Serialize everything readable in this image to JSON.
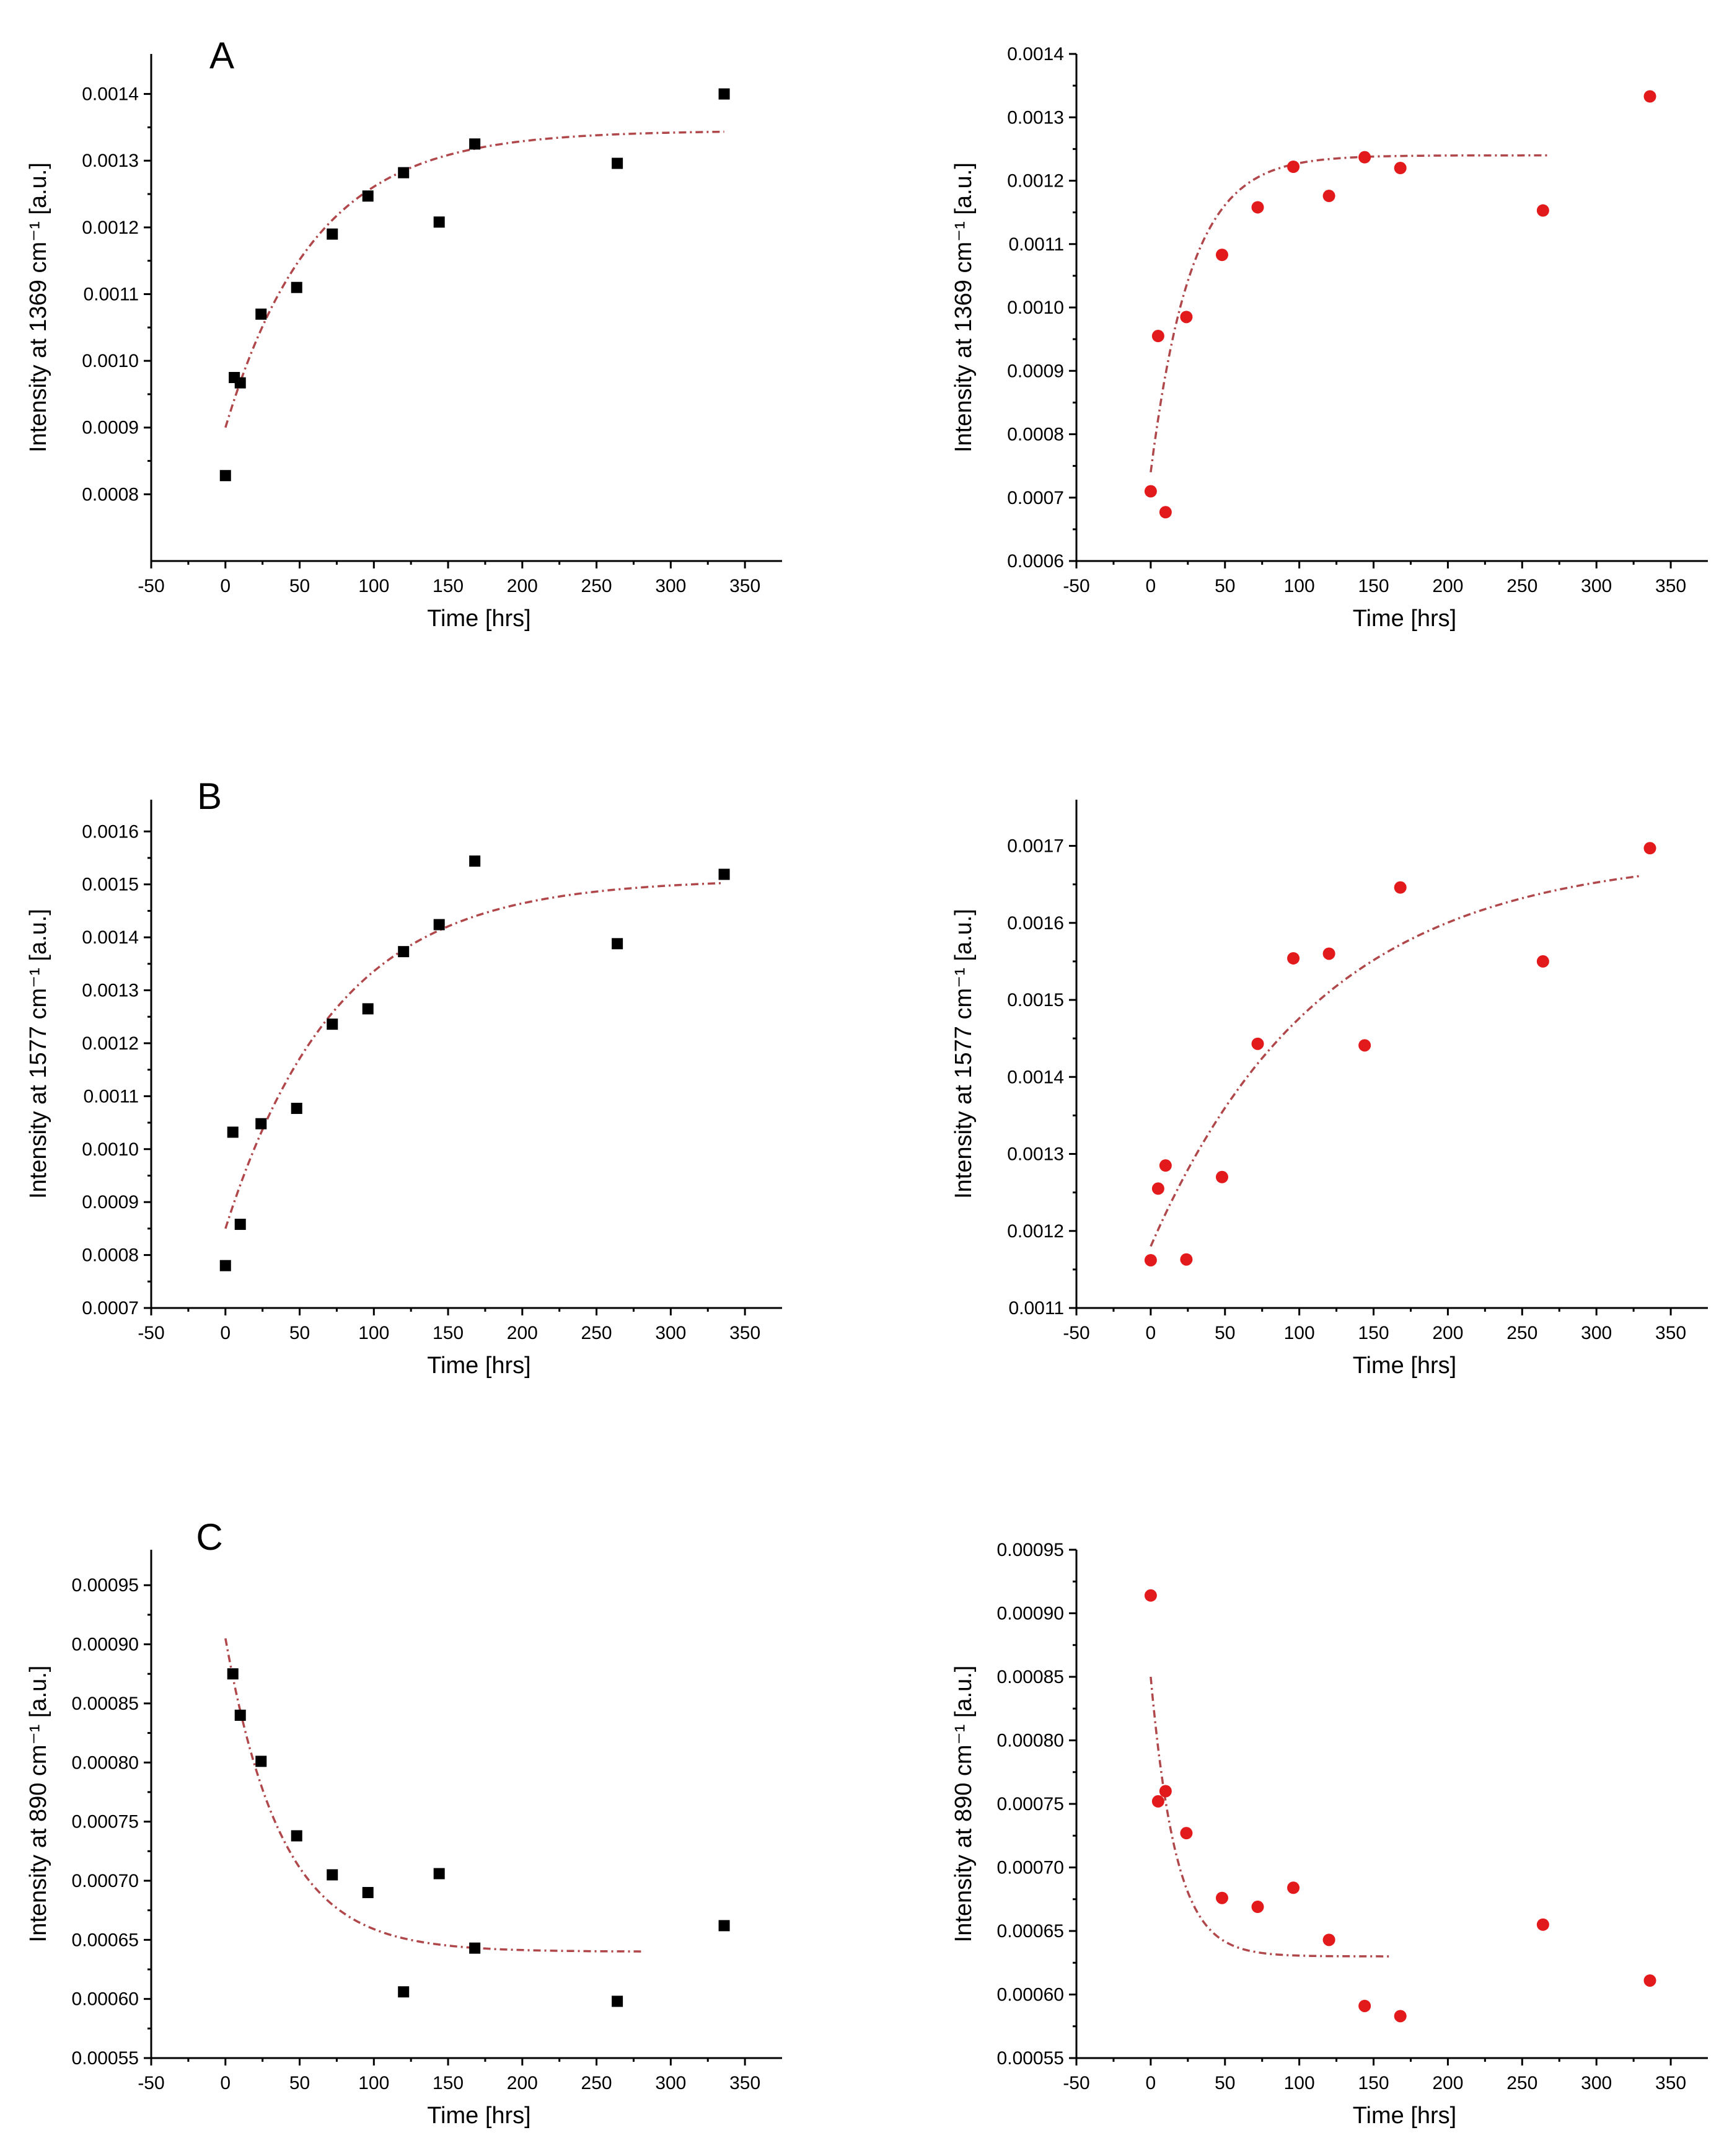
{
  "figure": {
    "panel_letters": [
      "A",
      "B",
      "C"
    ]
  },
  "chart_data": [
    {
      "type": "scatter",
      "panel": "A",
      "title": "",
      "xlabel": "Time [hrs]",
      "ylabel": "Intensity at 1369 cm⁻¹ [a.u.]",
      "xlim": [
        -50,
        375
      ],
      "ylim": [
        0.0007,
        0.00146
      ],
      "xticks": [
        -50,
        0,
        50,
        100,
        150,
        200,
        250,
        300,
        350
      ],
      "yticks": [
        0.0008,
        0.0009,
        0.001,
        0.0011,
        0.0012,
        0.0013,
        0.0014
      ],
      "ytick_labels": [
        "0.0008",
        "0.0009",
        "0.0010",
        "0.0011",
        "0.0012",
        "0.0013",
        "0.0014"
      ],
      "marker": "square",
      "color": "#000000",
      "x": [
        0,
        6,
        10,
        24,
        48,
        72,
        96,
        120,
        144,
        168,
        264,
        336
      ],
      "y": [
        0.000828,
        0.000975,
        0.000967,
        0.00107,
        0.00111,
        0.00119,
        0.001247,
        0.001282,
        0.001208,
        0.001325,
        0.001296,
        0.0014
      ],
      "fit": {
        "model": "exponential",
        "color": "#b0474b",
        "x_range": [
          0,
          336
        ],
        "y_start": 0.0009,
        "y_plateau": 0.001345,
        "tau": 60
      }
    },
    {
      "type": "scatter",
      "panel": "",
      "title": "",
      "xlabel": "Time [hrs]",
      "ylabel": "Intensity at 1369 cm⁻¹ [a.u.]",
      "xlim": [
        -50,
        375
      ],
      "ylim": [
        0.0006,
        0.0014
      ],
      "xticks": [
        -50,
        0,
        50,
        100,
        150,
        200,
        250,
        300,
        350
      ],
      "yticks": [
        0.0006,
        0.0007,
        0.0008,
        0.0009,
        0.001,
        0.0011,
        0.0012,
        0.0013,
        0.0014
      ],
      "ytick_labels": [
        "0.0006",
        "0.0007",
        "0.0008",
        "0.0009",
        "0.0010",
        "0.0011",
        "0.0012",
        "0.0013",
        "0.0014"
      ],
      "marker": "circle",
      "color": "#e31a1c",
      "x": [
        0,
        5,
        10,
        24,
        48,
        72,
        96,
        120,
        144,
        168,
        264,
        336
      ],
      "y": [
        0.00071,
        0.000955,
        0.000677,
        0.000985,
        0.001083,
        0.001158,
        0.001222,
        0.001176,
        0.001237,
        0.00122,
        0.001153,
        0.001333
      ],
      "fit": {
        "model": "exponential",
        "color": "#b0474b",
        "x_range": [
          0,
          267
        ],
        "y_start": 0.00074,
        "y_plateau": 0.00124,
        "tau": 27
      }
    },
    {
      "type": "scatter",
      "panel": "B",
      "title": "",
      "xlabel": "Time [hrs]",
      "ylabel": "Intensity at 1577 cm⁻¹ [a.u.]",
      "xlim": [
        -50,
        375
      ],
      "ylim": [
        0.0007,
        0.00166
      ],
      "xticks": [
        -50,
        0,
        50,
        100,
        150,
        200,
        250,
        300,
        350
      ],
      "yticks": [
        0.0007,
        0.0008,
        0.0009,
        0.001,
        0.0011,
        0.0012,
        0.0013,
        0.0014,
        0.0015,
        0.0016
      ],
      "ytick_labels": [
        "0.0007",
        "0.0008",
        "0.0009",
        "0.0010",
        "0.0011",
        "0.0012",
        "0.0013",
        "0.0014",
        "0.0015",
        "0.0016"
      ],
      "marker": "square",
      "color": "#000000",
      "x": [
        0,
        5,
        10,
        24,
        48,
        72,
        96,
        120,
        144,
        168,
        264,
        336
      ],
      "y": [
        0.00078,
        0.001032,
        0.000858,
        0.001048,
        0.001077,
        0.001236,
        0.001265,
        0.001373,
        0.001424,
        0.001544,
        0.001388,
        0.001519
      ],
      "fit": {
        "model": "exponential",
        "color": "#b0474b",
        "x_range": [
          0,
          336
        ],
        "y_start": 0.00085,
        "y_plateau": 0.00151,
        "tau": 75
      }
    },
    {
      "type": "scatter",
      "panel": "",
      "title": "",
      "xlabel": "Time [hrs]",
      "ylabel": "Intensity at 1577 cm⁻¹ [a.u.]",
      "xlim": [
        -50,
        375
      ],
      "ylim": [
        0.0011,
        0.00176
      ],
      "xticks": [
        -50,
        0,
        50,
        100,
        150,
        200,
        250,
        300,
        350
      ],
      "yticks": [
        0.0011,
        0.0012,
        0.0013,
        0.0014,
        0.0015,
        0.0016,
        0.0017
      ],
      "ytick_labels": [
        "0.0011",
        "0.0012",
        "0.0013",
        "0.0014",
        "0.0015",
        "0.0016",
        "0.0017"
      ],
      "marker": "circle",
      "color": "#e31a1c",
      "x": [
        0,
        5,
        10,
        24,
        48,
        72,
        96,
        120,
        144,
        168,
        264,
        336
      ],
      "y": [
        0.001162,
        0.001255,
        0.001285,
        0.001163,
        0.00127,
        0.001443,
        0.001554,
        0.00156,
        0.001441,
        0.001646,
        0.00155,
        0.001697
      ],
      "fit": {
        "model": "exponential",
        "color": "#b0474b",
        "x_range": [
          0,
          331
        ],
        "y_start": 0.00118,
        "y_plateau": 0.00169,
        "tau": 115
      }
    },
    {
      "type": "scatter",
      "panel": "C",
      "title": "",
      "xlabel": "Time [hrs]",
      "ylabel": "Intensity at 890 cm⁻¹ [a.u.]",
      "xlim": [
        -50,
        375
      ],
      "ylim": [
        0.00055,
        0.00098
      ],
      "xticks": [
        -50,
        0,
        50,
        100,
        150,
        200,
        250,
        300,
        350
      ],
      "yticks": [
        0.00055,
        0.0006,
        0.00065,
        0.0007,
        0.00075,
        0.0008,
        0.00085,
        0.0009,
        0.00095
      ],
      "ytick_labels": [
        "0.00055",
        "0.00060",
        "0.00065",
        "0.00070",
        "0.00075",
        "0.00080",
        "0.00085",
        "0.00090",
        "0.00095"
      ],
      "marker": "square",
      "color": "#000000",
      "x": [
        5,
        10,
        24,
        48,
        72,
        96,
        120,
        144,
        168,
        264,
        336
      ],
      "y": [
        0.000875,
        0.00084,
        0.000801,
        0.000738,
        0.000705,
        0.00069,
        0.000606,
        0.000706,
        0.000643,
        0.000598,
        0.000662
      ],
      "fit": {
        "model": "exponential",
        "color": "#b0474b",
        "x_range": [
          0,
          280
        ],
        "y_start": 0.000905,
        "y_plateau": 0.00064,
        "tau": 38
      }
    },
    {
      "type": "scatter",
      "panel": "",
      "title": "",
      "xlabel": "Time [hrs]",
      "ylabel": "Intensity at 890 cm⁻¹ [a.u.]",
      "xlim": [
        -50,
        375
      ],
      "ylim": [
        0.00055,
        0.00095
      ],
      "xticks": [
        -50,
        0,
        50,
        100,
        150,
        200,
        250,
        300,
        350
      ],
      "yticks": [
        0.00055,
        0.0006,
        0.00065,
        0.0007,
        0.00075,
        0.0008,
        0.00085,
        0.0009,
        0.00095
      ],
      "ytick_labels": [
        "0.00055",
        "0.00060",
        "0.00065",
        "0.00070",
        "0.00075",
        "0.00080",
        "0.00085",
        "0.00090",
        "0.00095"
      ],
      "marker": "circle",
      "color": "#e31a1c",
      "x": [
        0,
        5,
        10,
        24,
        48,
        72,
        96,
        120,
        144,
        168,
        264,
        336
      ],
      "y": [
        0.000914,
        0.000752,
        0.00076,
        0.000727,
        0.000676,
        0.000669,
        0.000684,
        0.000643,
        0.000591,
        0.000583,
        0.000655,
        0.000611
      ],
      "fit": {
        "model": "exponential",
        "color": "#b0474b",
        "x_range": [
          0,
          162
        ],
        "y_start": 0.00085,
        "y_plateau": 0.00063,
        "tau": 17
      }
    }
  ]
}
